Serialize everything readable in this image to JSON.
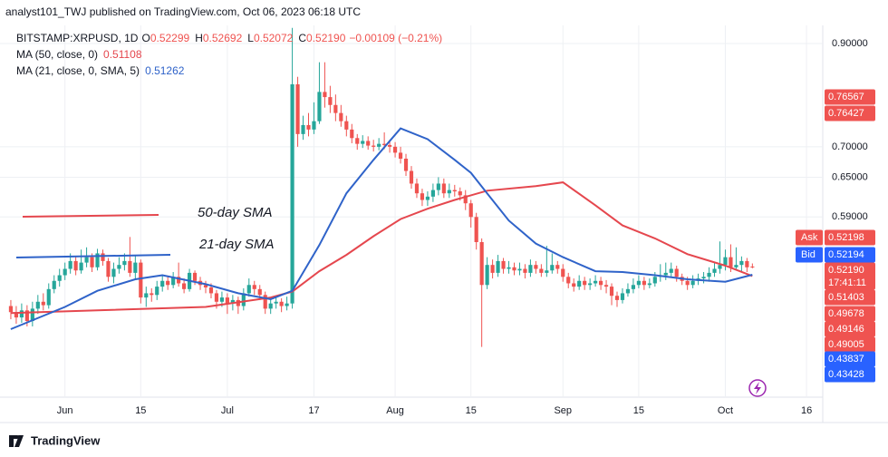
{
  "header": "analyst101_TWJ published on TradingView.com, Oct 06, 2023 06:18 UTC",
  "footer": "TradingView",
  "chart_data": {
    "type": "candlestick",
    "symbol": "BITSTAMP:XRPUSD, 1D",
    "ohlc_legend": [
      {
        "key": "O",
        "value": "0.52299"
      },
      {
        "key": "H",
        "value": "0.52692"
      },
      {
        "key": "L",
        "value": "0.52072"
      },
      {
        "key": "C",
        "value": "0.52190"
      }
    ],
    "change": "−0.00109 (−0.21%)",
    "up_color": "#26a69a",
    "down_color": "#ef5350",
    "open": [
      0.475,
      0.468,
      0.462,
      0.47,
      0.458,
      0.472,
      0.48,
      0.476,
      0.495,
      0.505,
      0.512,
      0.52,
      0.53,
      0.518,
      0.528,
      0.535,
      0.522,
      0.54,
      0.53,
      0.51,
      0.52,
      0.525,
      0.53,
      0.515,
      0.528,
      0.485,
      0.49,
      0.488,
      0.498,
      0.505,
      0.5,
      0.51,
      0.502,
      0.495,
      0.515,
      0.505,
      0.5,
      0.497,
      0.49,
      0.48,
      0.485,
      0.478,
      0.482,
      0.475,
      0.49,
      0.5,
      0.495,
      0.488,
      0.472,
      0.478,
      0.48,
      0.475,
      0.478,
      0.815,
      0.722,
      0.738,
      0.73,
      0.745,
      0.8,
      0.79,
      0.775,
      0.76,
      0.745,
      0.73,
      0.715,
      0.705,
      0.71,
      0.702,
      0.7,
      0.705,
      0.703,
      0.7,
      0.69,
      0.68,
      0.66,
      0.64,
      0.625,
      0.615,
      0.62,
      0.63,
      0.64,
      0.625,
      0.63,
      0.628,
      0.622,
      0.61,
      0.59,
      0.555,
      0.5,
      0.525,
      0.515,
      0.53,
      0.52,
      0.522,
      0.518,
      0.52,
      0.515,
      0.525,
      0.52,
      0.515,
      0.518,
      0.525,
      0.52,
      0.51,
      0.502,
      0.498,
      0.505,
      0.5,
      0.502,
      0.505,
      0.5,
      0.498,
      0.487,
      0.482,
      0.49,
      0.495,
      0.5,
      0.505,
      0.5,
      0.502,
      0.51,
      0.512,
      0.515,
      0.52,
      0.51,
      0.505,
      0.5,
      0.505,
      0.508,
      0.51,
      0.515,
      0.52,
      0.525,
      0.535,
      0.522,
      0.525,
      0.53,
      0.52299
    ],
    "high": [
      0.482,
      0.475,
      0.478,
      0.476,
      0.48,
      0.488,
      0.49,
      0.502,
      0.512,
      0.52,
      0.528,
      0.54,
      0.536,
      0.545,
      0.548,
      0.54,
      0.546,
      0.545,
      0.534,
      0.528,
      0.535,
      0.54,
      0.562,
      0.538,
      0.532,
      0.498,
      0.496,
      0.505,
      0.512,
      0.51,
      0.516,
      0.528,
      0.508,
      0.52,
      0.518,
      0.51,
      0.505,
      0.502,
      0.494,
      0.492,
      0.49,
      0.488,
      0.486,
      0.496,
      0.508,
      0.505,
      0.5,
      0.492,
      0.484,
      0.486,
      0.484,
      0.486,
      0.935,
      0.83,
      0.755,
      0.76,
      0.78,
      0.86,
      0.86,
      0.812,
      0.795,
      0.775,
      0.755,
      0.74,
      0.722,
      0.72,
      0.718,
      0.712,
      0.715,
      0.725,
      0.712,
      0.708,
      0.7,
      0.688,
      0.668,
      0.648,
      0.632,
      0.628,
      0.64,
      0.65,
      0.648,
      0.64,
      0.638,
      0.634,
      0.63,
      0.615,
      0.596,
      0.56,
      0.535,
      0.532,
      0.538,
      0.534,
      0.53,
      0.528,
      0.528,
      0.526,
      0.532,
      0.53,
      0.526,
      0.55,
      0.54,
      0.53,
      0.526,
      0.515,
      0.508,
      0.512,
      0.51,
      0.508,
      0.512,
      0.51,
      0.506,
      0.502,
      0.492,
      0.496,
      0.502,
      0.508,
      0.512,
      0.51,
      0.508,
      0.516,
      0.526,
      0.528,
      0.528,
      0.524,
      0.514,
      0.51,
      0.512,
      0.514,
      0.516,
      0.522,
      0.528,
      0.556,
      0.545,
      0.552,
      0.548,
      0.536,
      0.534,
      0.52692
    ],
    "low": [
      0.46,
      0.455,
      0.456,
      0.452,
      0.452,
      0.466,
      0.47,
      0.472,
      0.49,
      0.498,
      0.506,
      0.514,
      0.512,
      0.514,
      0.522,
      0.516,
      0.518,
      0.524,
      0.504,
      0.502,
      0.514,
      0.518,
      0.51,
      0.508,
      0.478,
      0.474,
      0.48,
      0.482,
      0.492,
      0.494,
      0.496,
      0.498,
      0.49,
      0.492,
      0.5,
      0.494,
      0.49,
      0.484,
      0.472,
      0.474,
      0.466,
      0.47,
      0.466,
      0.47,
      0.486,
      0.488,
      0.482,
      0.466,
      0.466,
      0.472,
      0.468,
      0.47,
      0.472,
      0.7,
      0.712,
      0.718,
      0.722,
      0.74,
      0.77,
      0.76,
      0.745,
      0.735,
      0.718,
      0.706,
      0.695,
      0.698,
      0.695,
      0.692,
      0.694,
      0.696,
      0.69,
      0.682,
      0.672,
      0.652,
      0.632,
      0.618,
      0.606,
      0.606,
      0.612,
      0.622,
      0.618,
      0.618,
      0.62,
      0.614,
      0.6,
      0.575,
      0.545,
      0.43,
      0.495,
      0.508,
      0.51,
      0.514,
      0.514,
      0.512,
      0.512,
      0.508,
      0.51,
      0.514,
      0.51,
      0.51,
      0.514,
      0.514,
      0.504,
      0.496,
      0.492,
      0.494,
      0.494,
      0.494,
      0.498,
      0.494,
      0.49,
      0.476,
      0.474,
      0.478,
      0.486,
      0.49,
      0.496,
      0.494,
      0.496,
      0.498,
      0.504,
      0.506,
      0.51,
      0.504,
      0.5,
      0.494,
      0.496,
      0.5,
      0.502,
      0.504,
      0.51,
      0.514,
      0.518,
      0.516,
      0.518,
      0.516,
      0.516,
      0.52072
    ],
    "close": [
      0.468,
      0.462,
      0.47,
      0.458,
      0.472,
      0.48,
      0.476,
      0.495,
      0.505,
      0.512,
      0.52,
      0.53,
      0.518,
      0.528,
      0.535,
      0.522,
      0.54,
      0.53,
      0.51,
      0.52,
      0.525,
      0.53,
      0.515,
      0.528,
      0.485,
      0.49,
      0.488,
      0.498,
      0.505,
      0.5,
      0.51,
      0.502,
      0.495,
      0.515,
      0.505,
      0.5,
      0.497,
      0.49,
      0.48,
      0.485,
      0.478,
      0.482,
      0.475,
      0.49,
      0.5,
      0.495,
      0.488,
      0.472,
      0.478,
      0.48,
      0.475,
      0.478,
      0.815,
      0.722,
      0.738,
      0.73,
      0.745,
      0.8,
      0.79,
      0.775,
      0.76,
      0.745,
      0.73,
      0.715,
      0.705,
      0.71,
      0.702,
      0.7,
      0.705,
      0.703,
      0.7,
      0.69,
      0.68,
      0.66,
      0.64,
      0.625,
      0.615,
      0.62,
      0.63,
      0.64,
      0.625,
      0.63,
      0.628,
      0.622,
      0.61,
      0.59,
      0.555,
      0.5,
      0.525,
      0.515,
      0.53,
      0.52,
      0.522,
      0.518,
      0.52,
      0.515,
      0.525,
      0.52,
      0.515,
      0.518,
      0.525,
      0.52,
      0.51,
      0.502,
      0.498,
      0.505,
      0.5,
      0.502,
      0.505,
      0.5,
      0.498,
      0.487,
      0.482,
      0.49,
      0.495,
      0.5,
      0.505,
      0.5,
      0.502,
      0.51,
      0.512,
      0.515,
      0.52,
      0.51,
      0.505,
      0.5,
      0.505,
      0.508,
      0.51,
      0.515,
      0.52,
      0.525,
      0.535,
      0.522,
      0.525,
      0.53,
      0.522,
      0.5219
    ],
    "lines": [
      {
        "name": "MA (50, close, 0)",
        "value_label": "0.51108",
        "color": "#e5474e",
        "x": [
          0,
          16,
          36,
          48,
          52,
          57,
          62,
          67,
          72,
          77,
          82,
          88,
          97,
          102,
          108,
          113,
          119,
          125,
          132,
          137
        ],
        "values": [
          0.467,
          0.47,
          0.474,
          0.485,
          0.492,
          0.517,
          0.538,
          0.563,
          0.587,
          0.602,
          0.615,
          0.629,
          0.636,
          0.642,
          0.607,
          0.578,
          0.56,
          0.539,
          0.524,
          0.51108
        ]
      },
      {
        "name": "MA (21, close, 0, SMA, 5)",
        "value_label": "0.51262",
        "color": "#2f63c9",
        "x": [
          0,
          10,
          16,
          23,
          28,
          36,
          42,
          48,
          52,
          57,
          62,
          67,
          72,
          77,
          82,
          85,
          88,
          92,
          97,
          102,
          108,
          113,
          119,
          125,
          132,
          137
        ],
        "values": [
          0.449,
          0.474,
          0.493,
          0.507,
          0.512,
          0.501,
          0.49,
          0.483,
          0.493,
          0.551,
          0.625,
          0.678,
          0.732,
          0.713,
          0.678,
          0.657,
          0.625,
          0.585,
          0.553,
          0.535,
          0.517,
          0.516,
          0.512,
          0.507,
          0.504,
          0.51262
        ]
      }
    ],
    "annotations": [
      {
        "text": "50-day SMA",
        "color": "#e5474e"
      },
      {
        "text": "21-day SMA",
        "color": "#2f63c9"
      }
    ],
    "log_scale": true,
    "grid": true,
    "xlim": [
      -2,
      150
    ],
    "ylim": [
      0.3805,
      0.9407
    ],
    "xticks": [
      {
        "value": 10,
        "label": "Jun"
      },
      {
        "value": 24,
        "label": "15"
      },
      {
        "value": 40,
        "label": "Jul"
      },
      {
        "value": 56,
        "label": "17"
      },
      {
        "value": 71,
        "label": "Aug"
      },
      {
        "value": 85,
        "label": "15"
      },
      {
        "value": 102,
        "label": "Sep"
      },
      {
        "value": 116,
        "label": "15"
      },
      {
        "value": 132,
        "label": "Oct"
      },
      {
        "value": 147,
        "label": "16"
      }
    ],
    "yticks": [
      {
        "value": 0.9,
        "label": "0.90000"
      },
      {
        "value": 0.7,
        "label": "0.70000"
      },
      {
        "value": 0.65,
        "label": "0.65000"
      },
      {
        "value": 0.59,
        "label": "0.59000"
      }
    ],
    "price_tags": [
      {
        "value": 0.76567,
        "label": "0.76567",
        "color": "#ef5350"
      },
      {
        "value": 0.76427,
        "label": "0.76427",
        "color": "#ef5350"
      },
      {
        "name": "Ask",
        "value": 0.52198,
        "label": "0.52198",
        "color": "#ef5350"
      },
      {
        "name": "Bid",
        "value": 0.52194,
        "label": "0.52194",
        "color": "#2962ff"
      },
      {
        "value": 0.5219,
        "label": "0.52190",
        "countdown": "17:41:11",
        "color": "#ef5350"
      },
      {
        "value": 0.51403,
        "label": "0.51403",
        "color": "#ef5350"
      },
      {
        "value": 0.49678,
        "label": "0.49678",
        "color": "#ef5350"
      },
      {
        "value": 0.49146,
        "label": "0.49146",
        "color": "#ef5350"
      },
      {
        "value": 0.49005,
        "label": "0.49005",
        "color": "#ef5350"
      },
      {
        "value": 0.43837,
        "label": "0.43837",
        "color": "#2962ff"
      },
      {
        "value": 0.43428,
        "label": "0.43428",
        "color": "#2962ff"
      }
    ]
  }
}
